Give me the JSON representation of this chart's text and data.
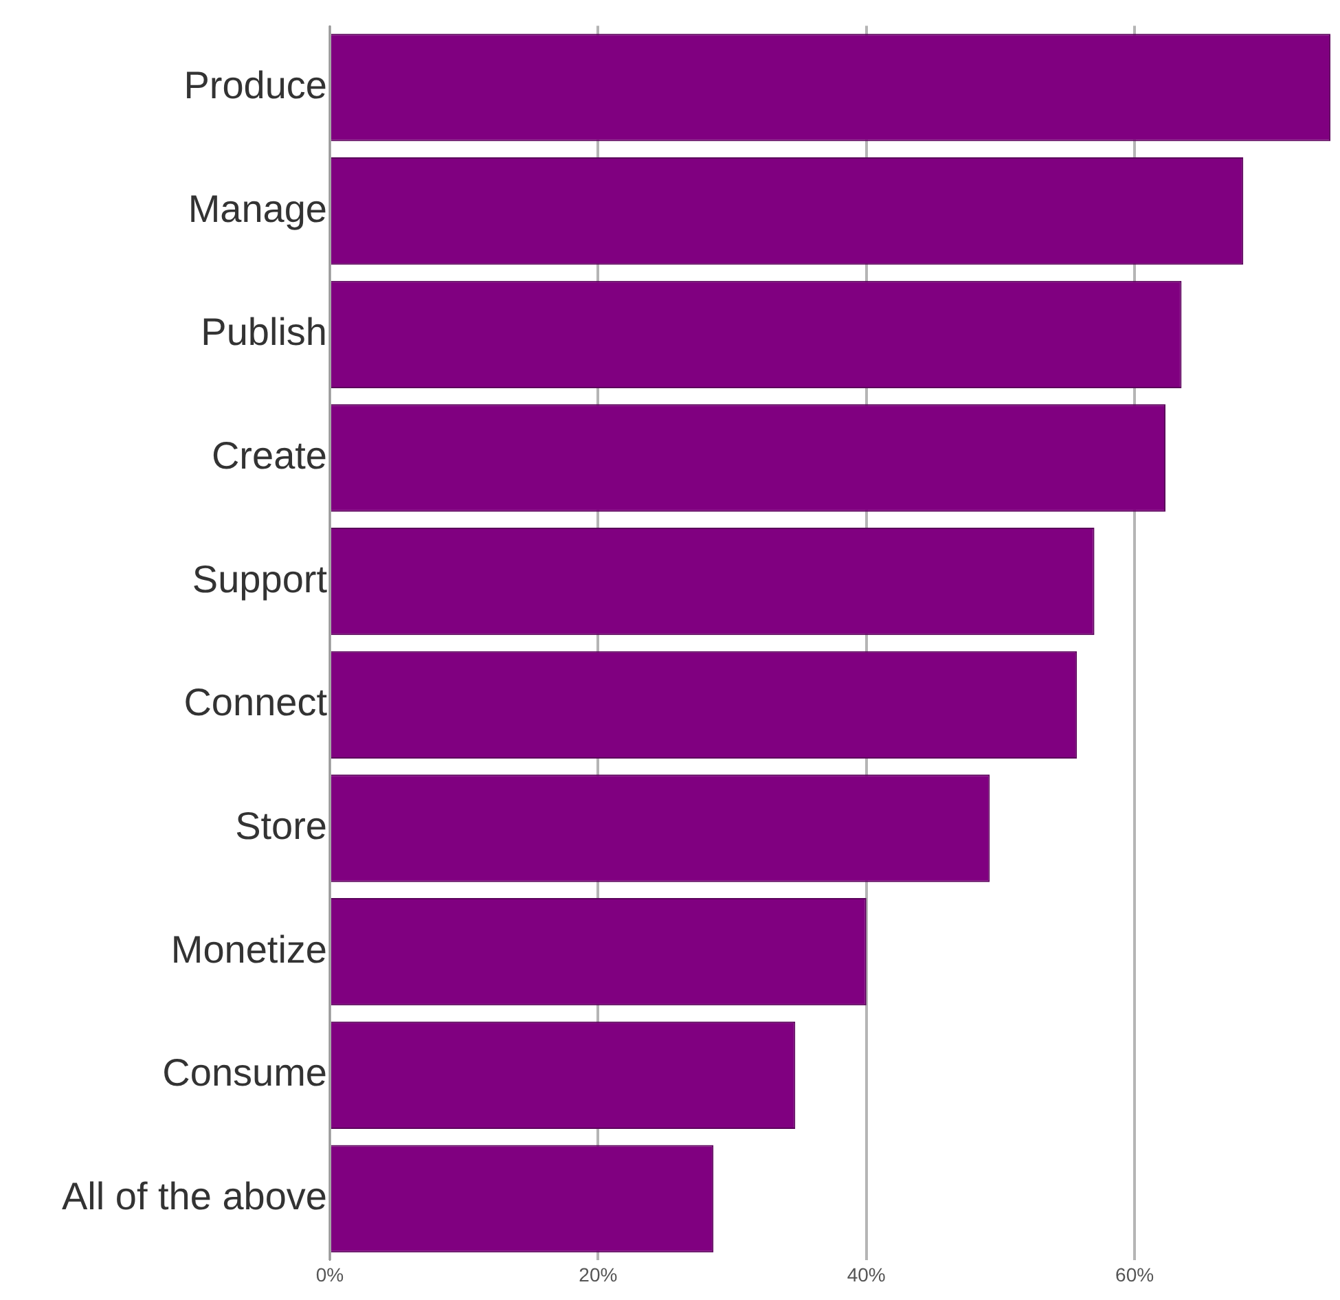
{
  "chart_data": {
    "type": "bar",
    "orientation": "horizontal",
    "categories": [
      "Produce",
      "Manage",
      "Publish",
      "Create",
      "Support",
      "Connect",
      "Store",
      "Monetize",
      "Consume",
      "All of the above"
    ],
    "values": [
      74.6,
      68.1,
      63.5,
      62.3,
      57.0,
      55.7,
      49.2,
      40.0,
      34.7,
      28.6
    ],
    "color": "#800080",
    "xlim": [
      0,
      74.8
    ],
    "xticks": [
      {
        "value": 0,
        "label": "0%"
      },
      {
        "value": 20,
        "label": "20%"
      },
      {
        "value": 40,
        "label": "40%"
      },
      {
        "value": 60,
        "label": "60%"
      }
    ],
    "grid": "x"
  }
}
